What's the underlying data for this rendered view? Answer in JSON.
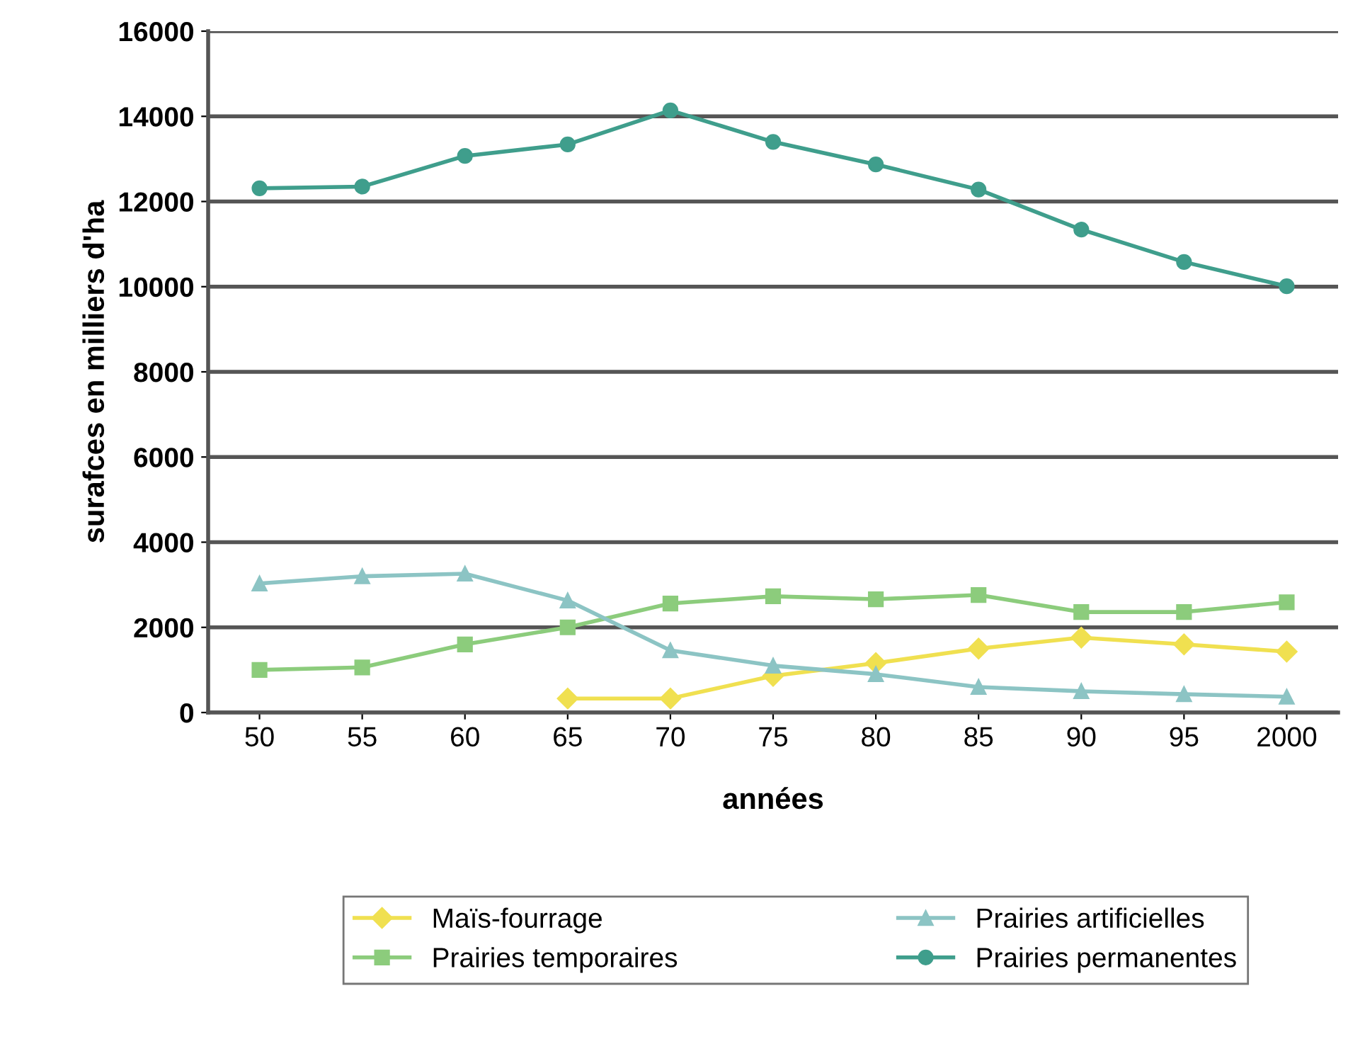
{
  "chart_data": {
    "type": "line",
    "xlabel": "années",
    "ylabel": "surafces en milliers d'ha",
    "categories": [
      "50",
      "55",
      "60",
      "65",
      "70",
      "75",
      "80",
      "85",
      "90",
      "95",
      "2000"
    ],
    "series": [
      {
        "name": "Maïs-fourrage",
        "color": "#f0e050",
        "marker": "diamond",
        "values": [
          null,
          null,
          null,
          330,
          330,
          860,
          1160,
          1500,
          1760,
          1600,
          1430
        ]
      },
      {
        "name": "Prairies temporaires",
        "color": "#8ccc7c",
        "marker": "square",
        "values": [
          1000,
          1060,
          1600,
          2000,
          2560,
          2730,
          2660,
          2760,
          2360,
          2360,
          2590
        ]
      },
      {
        "name": "Prairies artificielles",
        "color": "#8cc4c4",
        "marker": "triangle",
        "values": [
          3030,
          3200,
          3260,
          2630,
          1460,
          1100,
          900,
          600,
          500,
          430,
          370
        ]
      },
      {
        "name": "Prairies permanentes",
        "color": "#3f9e8c",
        "marker": "circle",
        "values": [
          12310,
          12350,
          13070,
          13340,
          14140,
          13400,
          12870,
          12280,
          11340,
          10580,
          10010
        ]
      }
    ],
    "ylim": [
      0,
      16000
    ],
    "yticks": [
      0,
      2000,
      4000,
      6000,
      8000,
      10000,
      12000,
      14000,
      16000
    ],
    "grid": "y",
    "legend": "bottom",
    "line_style": "solid"
  }
}
